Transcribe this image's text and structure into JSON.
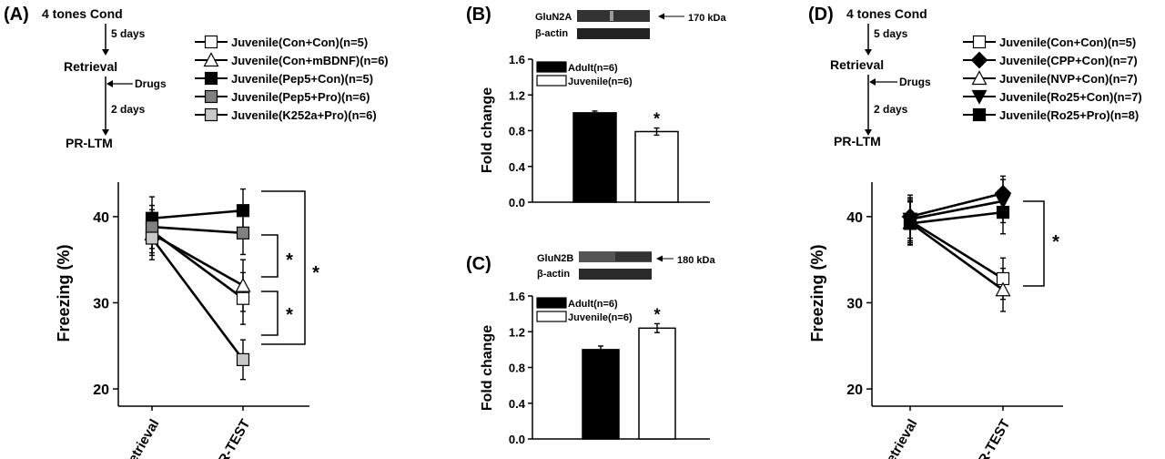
{
  "panels": {
    "a": {
      "label": "(A)",
      "schedule": [
        "4 tones Cond",
        "5 days",
        "Retrieval",
        "Drugs",
        "2 days",
        "PR-LTM"
      ]
    },
    "b": {
      "label": "(B)",
      "blot_top": "GluN2A",
      "blot_bottom": "β-actin",
      "kda": "170 kDa"
    },
    "c": {
      "label": "(C)",
      "blot_top": "GluN2B",
      "blot_bottom": "β-actin",
      "kda": "180 kDa"
    },
    "d": {
      "label": "(D)",
      "schedule": [
        "4 tones Cond",
        "5 days",
        "Retrieval",
        "Drugs",
        "2 days",
        "PR-LTM"
      ]
    }
  },
  "chart_data": [
    {
      "id": "A",
      "type": "line",
      "ylabel": "Freezing (%)",
      "ylim": [
        18,
        44
      ],
      "yticks": [
        20,
        30,
        40
      ],
      "categories": [
        "Retrieval",
        "PR-TEST"
      ],
      "series": [
        {
          "name": "Juvenile(Con+Con)(n=5)",
          "color": "#ffffff",
          "marker": "square",
          "values": [
            38.3,
            30.5
          ],
          "errors": [
            2.5,
            3.0
          ]
        },
        {
          "name": "Juvenile(Con+mBDNF)(n=6)",
          "color": "#ffffff",
          "marker": "triangle",
          "values": [
            38.0,
            32.0
          ],
          "errors": [
            2.5,
            3.0
          ]
        },
        {
          "name": "Juvenile(Pep5+Con)(n=5)",
          "color": "#000000",
          "marker": "square",
          "values": [
            39.8,
            40.7
          ],
          "errors": [
            2.5,
            2.5
          ]
        },
        {
          "name": "Juvenile(Pep5+Pro)(n=6)",
          "color": "#808080",
          "marker": "square",
          "values": [
            38.8,
            38.1
          ],
          "errors": [
            2.5,
            2.5
          ]
        },
        {
          "name": "Juvenile(K252a+Pro)(n=6)",
          "color": "#c8c8c8",
          "marker": "square",
          "values": [
            37.5,
            23.4
          ],
          "errors": [
            2.5,
            2.3
          ]
        }
      ],
      "significance": [
        "*",
        "*",
        "*"
      ]
    },
    {
      "id": "B",
      "type": "bar",
      "ylabel": "Fold change",
      "ylim": [
        0.0,
        1.6
      ],
      "yticks": [
        "0.0",
        "0.4",
        "0.8",
        "1.2",
        "1.6"
      ],
      "categories": [
        "Adult(n=6)",
        "Juvenile(n=6)"
      ],
      "values": [
        1.0,
        0.79
      ],
      "errors": [
        0.02,
        0.04
      ],
      "colors": [
        "#000000",
        "#ffffff"
      ],
      "significance": "*"
    },
    {
      "id": "C",
      "type": "bar",
      "ylabel": "Fold change",
      "ylim": [
        0.0,
        1.6
      ],
      "yticks": [
        "0.0",
        "0.4",
        "0.8",
        "1.2",
        "1.6"
      ],
      "categories": [
        "Adult(n=6)",
        "Juvenile(n=6)"
      ],
      "values": [
        1.0,
        1.24
      ],
      "errors": [
        0.04,
        0.05
      ],
      "colors": [
        "#000000",
        "#ffffff"
      ],
      "significance": "*"
    },
    {
      "id": "D",
      "type": "line",
      "ylabel": "Freezing (%)",
      "ylim": [
        18,
        44
      ],
      "yticks": [
        20,
        30,
        40
      ],
      "categories": [
        "Retrieval",
        "PR-TEST"
      ],
      "series": [
        {
          "name": "Juvenile(Con+Con)(n=5)",
          "color": "#ffffff",
          "marker": "square",
          "values": [
            39.5,
            32.8
          ],
          "errors": [
            2.5,
            2.4
          ]
        },
        {
          "name": "Juvenile(CPP+Con)(n=7)",
          "color": "#000000",
          "marker": "diamond",
          "values": [
            40.0,
            42.7
          ],
          "errors": [
            2.5,
            2.0
          ]
        },
        {
          "name": "Juvenile(NVP+Con)(n=7)",
          "color": "#ffffff",
          "marker": "triangle",
          "values": [
            39.3,
            31.5
          ],
          "errors": [
            2.5,
            2.5
          ]
        },
        {
          "name": "Juvenile(Ro25+Con)(n=7)",
          "color": "#000000",
          "marker": "triangle-down",
          "values": [
            39.7,
            41.8
          ],
          "errors": [
            2.5,
            2.5
          ]
        },
        {
          "name": "Juvenile(Ro25+Pro)(n=8)",
          "color": "#000000",
          "marker": "square",
          "values": [
            39.2,
            40.5
          ],
          "errors": [
            2.5,
            2.5
          ]
        }
      ],
      "significance": [
        "*"
      ]
    }
  ]
}
